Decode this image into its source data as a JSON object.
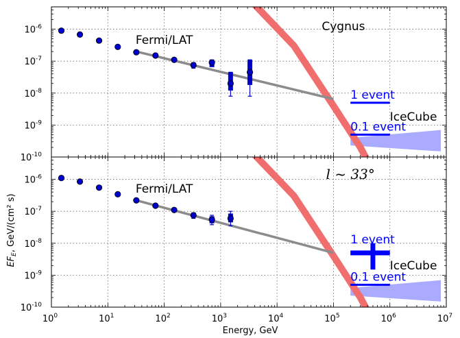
{
  "chart_data": {
    "type": "scatter",
    "xlabel": "Energy, GeV",
    "ylabel": "EF_E, GeV/(cm² s)",
    "xscale": "log",
    "yscale": "log",
    "xlim": [
      1,
      10000000
    ],
    "x_ticks": [
      1,
      10,
      100,
      1000,
      10000,
      100000,
      1000000,
      10000000
    ],
    "x_tick_labels": [
      [
        "10",
        "0"
      ],
      [
        "10",
        "1"
      ],
      [
        "10",
        "2"
      ],
      [
        "10",
        "3"
      ],
      [
        "10",
        "4"
      ],
      [
        "10",
        "5"
      ],
      [
        "10",
        "6"
      ],
      [
        "10",
        "7"
      ]
    ],
    "grid": true,
    "colors": {
      "fermi_points": "#0000cc",
      "fermi_fit": "#8c8c8c",
      "model_band": "#f06e6e",
      "icecube": "#0000ff",
      "icecube_band": "#aaaaff"
    },
    "panels": [
      {
        "label": "Cygnus",
        "label_style": "plain",
        "ylim": [
          1e-10,
          5e-06
        ],
        "y_ticks": [
          1e-10,
          1e-09,
          1e-08,
          1e-07,
          1e-06
        ],
        "y_tick_labels": [
          [
            "10",
            "-10"
          ],
          [
            "10",
            "-9"
          ],
          [
            "10",
            "-8"
          ],
          [
            "10",
            "-7"
          ],
          [
            "10",
            "-6"
          ]
        ],
        "fermi_label": "Fermi/LAT",
        "icecube_label": "IceCube",
        "event_labels": [
          "1 event",
          "0.1 event"
        ],
        "fermi_points": [
          {
            "x": 1.5,
            "y": 9e-07
          },
          {
            "x": 3.2,
            "y": 6.8e-07
          },
          {
            "x": 7,
            "y": 4.4e-07
          },
          {
            "x": 15,
            "y": 2.8e-07
          },
          {
            "x": 32,
            "y": 1.9e-07
          },
          {
            "x": 70,
            "y": 1.5e-07
          },
          {
            "x": 150,
            "y": 1.1e-07
          },
          {
            "x": 330,
            "y": 7.5e-08,
            "lo": 6e-08,
            "hi": 9e-08
          },
          {
            "x": 700,
            "y": 9e-08,
            "lo": 7e-08,
            "hi": 1.1e-07
          },
          {
            "x": 1500,
            "y": 2e-08,
            "lo": 8e-09,
            "hi": 4.5e-08
          },
          {
            "x": 3300,
            "y": 4.5e-08,
            "lo": 8e-09,
            "hi": 1.1e-07
          }
        ],
        "fermi_boxes": [
          {
            "x": 700,
            "lo": 6.5e-08,
            "hi": 1.1e-07
          },
          {
            "x": 1500,
            "lo": 1.2e-08,
            "hi": 4.5e-08
          },
          {
            "x": 3300,
            "lo": 1.8e-08,
            "hi": 1.1e-07
          }
        ],
        "fermi_fit": [
          [
            32,
            2e-07
          ],
          [
            100000,
            6.5e-09
          ]
        ],
        "model_band": [
          [
            3000,
            1e-05
          ],
          [
            20000,
            3e-07
          ],
          [
            100000,
            4e-09
          ],
          [
            300000,
            2e-10
          ],
          [
            600000,
            2e-11
          ]
        ],
        "model_band_width": 10,
        "icecube_1event": {
          "x": [
            200000,
            1000000
          ],
          "y": 5e-09
        },
        "icecube_01event": {
          "x": [
            200000,
            1000000
          ],
          "y": 5e-10
        },
        "icecube_band": [
          [
            200000,
            4e-10
          ],
          [
            8000000,
            7e-10
          ],
          [
            8000000,
            1.5e-10
          ],
          [
            200000,
            2.3e-10
          ]
        ]
      },
      {
        "label": "l ~ 33°",
        "label_style": "math",
        "ylim": [
          1e-10,
          5e-06
        ],
        "y_ticks": [
          1e-10,
          1e-09,
          1e-08,
          1e-07,
          1e-06
        ],
        "y_tick_labels": [
          [
            "10",
            "-10"
          ],
          [
            "10",
            "-9"
          ],
          [
            "10",
            "-8"
          ],
          [
            "10",
            "-7"
          ],
          [
            "10",
            "-6"
          ]
        ],
        "fermi_label": "Fermi/LAT",
        "icecube_label": "IceCube",
        "event_labels": [
          "1 event",
          "0.1 event"
        ],
        "fermi_points": [
          {
            "x": 1.5,
            "y": 1.1e-06
          },
          {
            "x": 3.2,
            "y": 8.5e-07
          },
          {
            "x": 7,
            "y": 5.5e-07
          },
          {
            "x": 15,
            "y": 3.4e-07
          },
          {
            "x": 32,
            "y": 2.2e-07
          },
          {
            "x": 70,
            "y": 1.5e-07
          },
          {
            "x": 150,
            "y": 1.1e-07
          },
          {
            "x": 330,
            "y": 7.5e-08,
            "lo": 6e-08,
            "hi": 9e-08
          },
          {
            "x": 700,
            "y": 5.5e-08,
            "lo": 3.8e-08,
            "hi": 7.5e-08
          },
          {
            "x": 1500,
            "y": 6e-08,
            "lo": 3.5e-08,
            "hi": 1e-07
          }
        ],
        "fermi_boxes": [
          {
            "x": 700,
            "lo": 4.2e-08,
            "hi": 7e-08
          },
          {
            "x": 1500,
            "lo": 4.5e-08,
            "hi": 8.5e-08
          }
        ],
        "fermi_fit": [
          [
            32,
            2.2e-07
          ],
          [
            100000,
            5e-09
          ]
        ],
        "model_band": [
          [
            3000,
            1e-05
          ],
          [
            20000,
            3e-07
          ],
          [
            100000,
            4e-09
          ],
          [
            300000,
            2e-10
          ],
          [
            600000,
            2e-11
          ]
        ],
        "model_band_width": 10,
        "icecube_1event": {
          "x": [
            200000,
            1000000
          ],
          "y": 5e-09,
          "cross_x": 500000,
          "cross_y": [
            1.5e-09,
            1e-08
          ]
        },
        "icecube_01event": {
          "x": [
            200000,
            1000000
          ],
          "y": 5e-10
        },
        "icecube_band": [
          [
            200000,
            4e-10
          ],
          [
            8000000,
            7e-10
          ],
          [
            8000000,
            1.5e-10
          ],
          [
            200000,
            2.3e-10
          ]
        ]
      }
    ]
  }
}
